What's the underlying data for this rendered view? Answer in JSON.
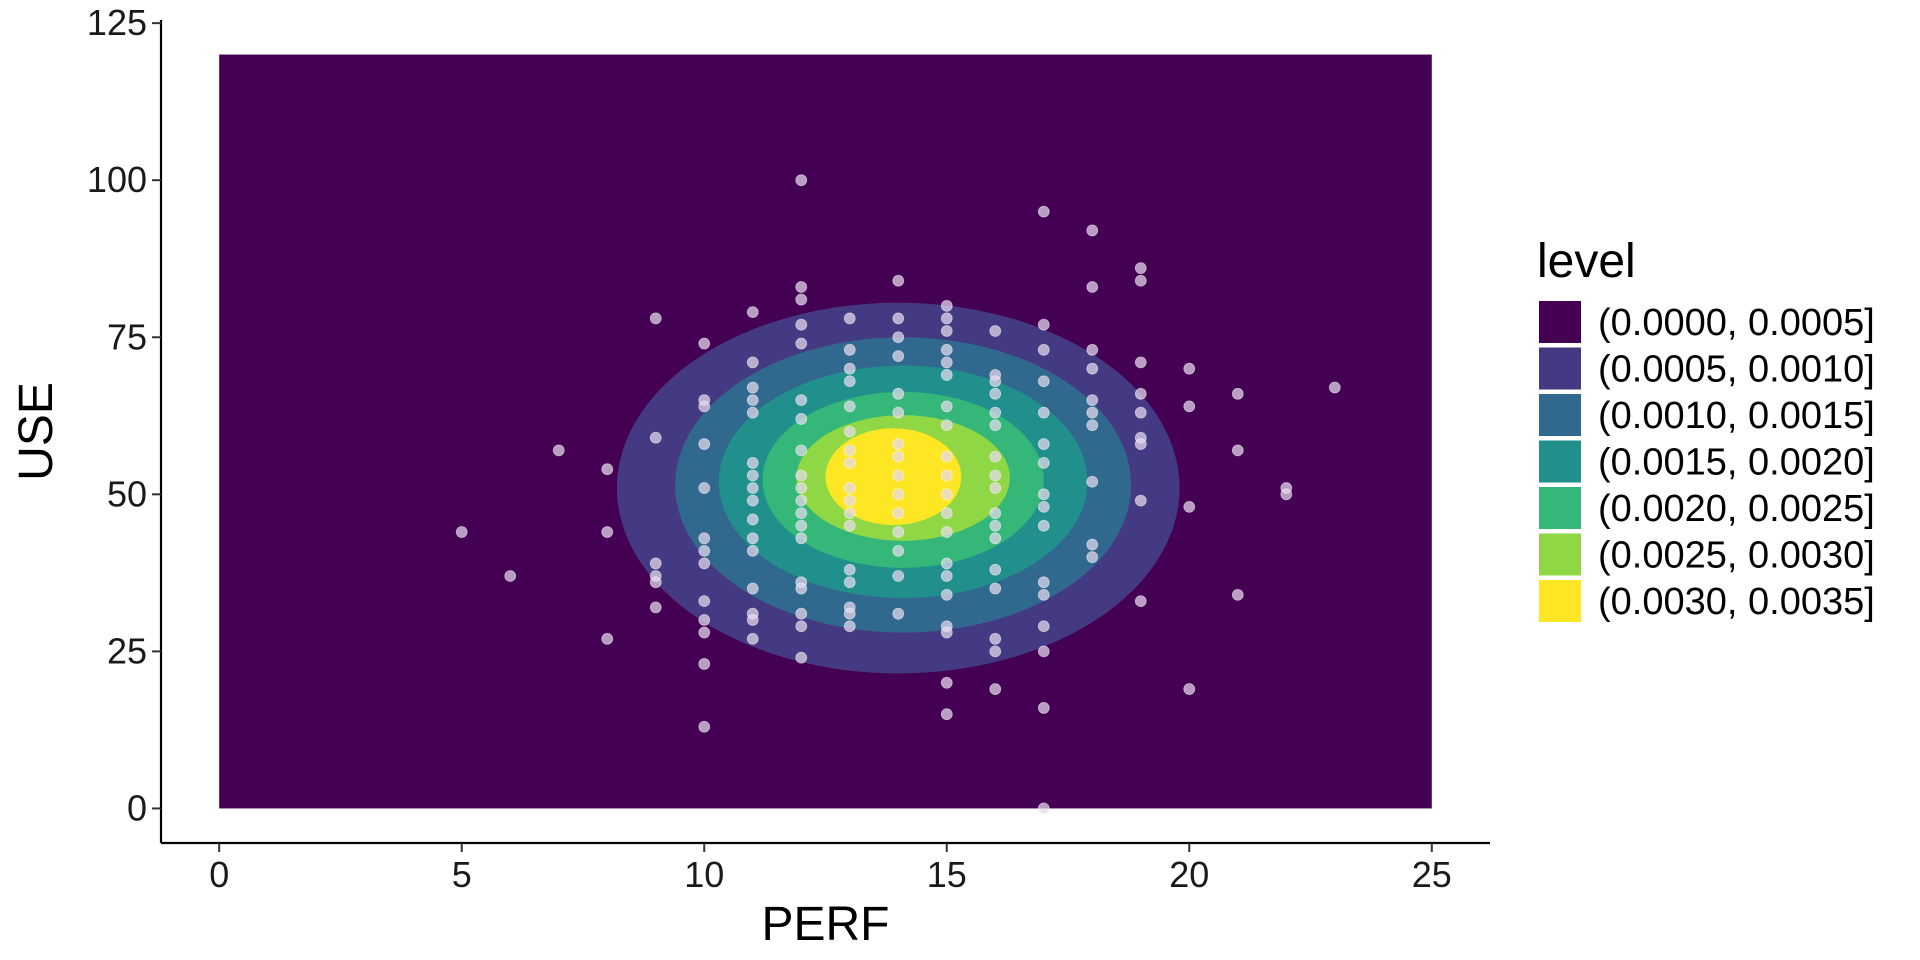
{
  "chart_data": {
    "type": "contour_density_scatter",
    "xlabel": "PERF",
    "ylabel": "USE",
    "xlim": [
      -1.2,
      26.2
    ],
    "ylim": [
      -5.5,
      125.5
    ],
    "density_region": {
      "x": [
        0,
        25
      ],
      "y": [
        0,
        120
      ]
    },
    "x_ticks": [
      0,
      5,
      10,
      15,
      20,
      25
    ],
    "y_ticks": [
      0,
      25,
      50,
      75,
      100,
      125
    ],
    "grid": false,
    "legend": {
      "title": "level",
      "position": "right",
      "entries": [
        {
          "label": "(0.0000, 0.0005]",
          "color": "#440154"
        },
        {
          "label": "(0.0005, 0.0010]",
          "color": "#443A83"
        },
        {
          "label": "(0.0010, 0.0015]",
          "color": "#31688E"
        },
        {
          "label": "(0.0015, 0.0020]",
          "color": "#21908D"
        },
        {
          "label": "(0.0020, 0.0025]",
          "color": "#35B779"
        },
        {
          "label": "(0.0025, 0.0030]",
          "color": "#8FD744"
        },
        {
          "label": "(0.0030, 0.0035]",
          "color": "#FDE725"
        }
      ]
    },
    "contours": [
      {
        "level": 2,
        "center": [
          14.0,
          51.0
        ],
        "rx": 5.8,
        "ry": 29.5,
        "color": "#443A83"
      },
      {
        "level": 3,
        "center": [
          14.1,
          51.5
        ],
        "rx": 4.7,
        "ry": 23.5,
        "color": "#31688E"
      },
      {
        "level": 4,
        "center": [
          14.1,
          52.0
        ],
        "rx": 3.8,
        "ry": 18.5,
        "color": "#21908D"
      },
      {
        "level": 5,
        "center": [
          14.1,
          52.3
        ],
        "rx": 2.9,
        "ry": 14.0,
        "color": "#35B779"
      },
      {
        "level": 6,
        "center": [
          14.1,
          52.6
        ],
        "rx": 2.2,
        "ry": 10.0,
        "color": "#8FD744"
      },
      {
        "level": 7,
        "center": [
          13.9,
          52.8
        ],
        "rx": 1.4,
        "ry": 7.7,
        "color": "#FDE725"
      }
    ],
    "points": {
      "color": "#e6d9ee",
      "opacity": 0.72,
      "values": [
        [
          5,
          44
        ],
        [
          6,
          37
        ],
        [
          7,
          57
        ],
        [
          8,
          54
        ],
        [
          8,
          44
        ],
        [
          8,
          27
        ],
        [
          9,
          78
        ],
        [
          9,
          59
        ],
        [
          9,
          39
        ],
        [
          9,
          37
        ],
        [
          9,
          36
        ],
        [
          9,
          32
        ],
        [
          10,
          74
        ],
        [
          10,
          65
        ],
        [
          10,
          64
        ],
        [
          10,
          58
        ],
        [
          10,
          51
        ],
        [
          10,
          43
        ],
        [
          10,
          41
        ],
        [
          10,
          39
        ],
        [
          10,
          33
        ],
        [
          10,
          30
        ],
        [
          10,
          28
        ],
        [
          10,
          23
        ],
        [
          10,
          13
        ],
        [
          11,
          79
        ],
        [
          11,
          71
        ],
        [
          11,
          67
        ],
        [
          11,
          65
        ],
        [
          11,
          63
        ],
        [
          11,
          55
        ],
        [
          11,
          53
        ],
        [
          11,
          51
        ],
        [
          11,
          49
        ],
        [
          11,
          46
        ],
        [
          11,
          43
        ],
        [
          11,
          41
        ],
        [
          11,
          35
        ],
        [
          11,
          31
        ],
        [
          11,
          30
        ],
        [
          11,
          27
        ],
        [
          12,
          100
        ],
        [
          12,
          83
        ],
        [
          12,
          81
        ],
        [
          12,
          77
        ],
        [
          12,
          74
        ],
        [
          12,
          65
        ],
        [
          12,
          62
        ],
        [
          12,
          57
        ],
        [
          12,
          53
        ],
        [
          12,
          51
        ],
        [
          12,
          49
        ],
        [
          12,
          47
        ],
        [
          12,
          45
        ],
        [
          12,
          43
        ],
        [
          12,
          36
        ],
        [
          12,
          35
        ],
        [
          12,
          31
        ],
        [
          12,
          29
        ],
        [
          12,
          24
        ],
        [
          13,
          78
        ],
        [
          13,
          73
        ],
        [
          13,
          70
        ],
        [
          13,
          68
        ],
        [
          13,
          64
        ],
        [
          13,
          60
        ],
        [
          13,
          57
        ],
        [
          13,
          55
        ],
        [
          13,
          51
        ],
        [
          13,
          49
        ],
        [
          13,
          47
        ],
        [
          13,
          45
        ],
        [
          13,
          38
        ],
        [
          13,
          36
        ],
        [
          13,
          32
        ],
        [
          13,
          31
        ],
        [
          13,
          29
        ],
        [
          14,
          84
        ],
        [
          14,
          78
        ],
        [
          14,
          75
        ],
        [
          14,
          72
        ],
        [
          14,
          66
        ],
        [
          14,
          63
        ],
        [
          14,
          58
        ],
        [
          14,
          56
        ],
        [
          14,
          53
        ],
        [
          14,
          50
        ],
        [
          14,
          47
        ],
        [
          14,
          44
        ],
        [
          14,
          41
        ],
        [
          14,
          37
        ],
        [
          14,
          31
        ],
        [
          15,
          80
        ],
        [
          15,
          78
        ],
        [
          15,
          76
        ],
        [
          15,
          73
        ],
        [
          15,
          71
        ],
        [
          15,
          69
        ],
        [
          15,
          64
        ],
        [
          15,
          61
        ],
        [
          15,
          56
        ],
        [
          15,
          53
        ],
        [
          15,
          50
        ],
        [
          15,
          47
        ],
        [
          15,
          44
        ],
        [
          15,
          39
        ],
        [
          15,
          37
        ],
        [
          15,
          34
        ],
        [
          15,
          29
        ],
        [
          15,
          28
        ],
        [
          15,
          20
        ],
        [
          15,
          15
        ],
        [
          16,
          76
        ],
        [
          16,
          69
        ],
        [
          16,
          68
        ],
        [
          16,
          66
        ],
        [
          16,
          63
        ],
        [
          16,
          61
        ],
        [
          16,
          56
        ],
        [
          16,
          53
        ],
        [
          16,
          51
        ],
        [
          16,
          47
        ],
        [
          16,
          45
        ],
        [
          16,
          43
        ],
        [
          16,
          38
        ],
        [
          16,
          35
        ],
        [
          16,
          27
        ],
        [
          16,
          25
        ],
        [
          16,
          19
        ],
        [
          17,
          95
        ],
        [
          17,
          77
        ],
        [
          17,
          73
        ],
        [
          17,
          68
        ],
        [
          17,
          63
        ],
        [
          17,
          58
        ],
        [
          17,
          55
        ],
        [
          17,
          50
        ],
        [
          17,
          48
        ],
        [
          17,
          45
        ],
        [
          17,
          36
        ],
        [
          17,
          34
        ],
        [
          17,
          29
        ],
        [
          17,
          25
        ],
        [
          17,
          16
        ],
        [
          17,
          0
        ],
        [
          18,
          92
        ],
        [
          18,
          83
        ],
        [
          18,
          73
        ],
        [
          18,
          70
        ],
        [
          18,
          65
        ],
        [
          18,
          63
        ],
        [
          18,
          61
        ],
        [
          18,
          52
        ],
        [
          18,
          42
        ],
        [
          18,
          40
        ],
        [
          19,
          86
        ],
        [
          19,
          84
        ],
        [
          19,
          71
        ],
        [
          19,
          66
        ],
        [
          19,
          63
        ],
        [
          19,
          59
        ],
        [
          19,
          58
        ],
        [
          19,
          49
        ],
        [
          19,
          33
        ],
        [
          20,
          70
        ],
        [
          20,
          64
        ],
        [
          20,
          48
        ],
        [
          20,
          19
        ],
        [
          21,
          66
        ],
        [
          21,
          57
        ],
        [
          21,
          34
        ],
        [
          22,
          51
        ],
        [
          22,
          50
        ],
        [
          23,
          67
        ]
      ]
    }
  }
}
